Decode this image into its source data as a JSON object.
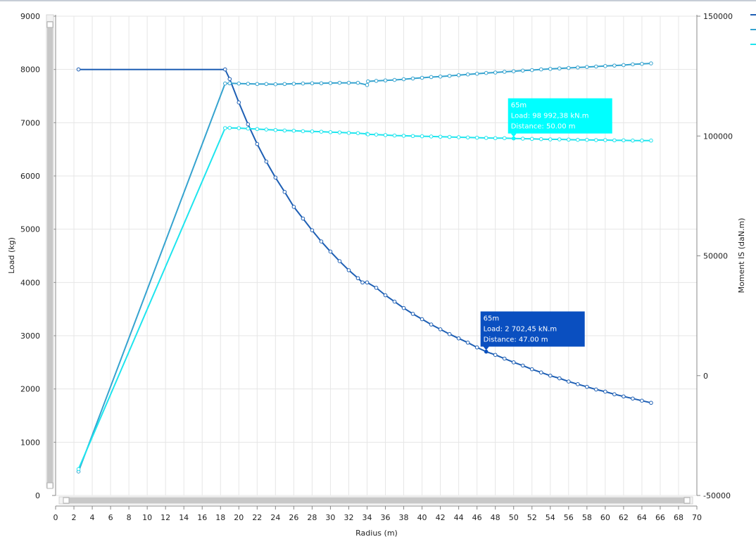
{
  "chart_data": {
    "type": "line",
    "xlabel": "Radius (m)",
    "ylabel": "Load (kg)",
    "y2label": "Moment IS (daN.m)",
    "xlim": [
      0,
      70
    ],
    "ylim": [
      0,
      9000
    ],
    "y2lim": [
      -50000,
      150000
    ],
    "xticks": [
      0,
      2,
      4,
      6,
      8,
      10,
      12,
      14,
      16,
      18,
      20,
      22,
      24,
      26,
      28,
      30,
      32,
      34,
      36,
      38,
      40,
      42,
      44,
      46,
      48,
      50,
      52,
      54,
      56,
      58,
      60,
      62,
      64,
      66,
      68,
      70
    ],
    "yticks": [
      0,
      1000,
      2000,
      3000,
      4000,
      5000,
      6000,
      7000,
      8000,
      9000
    ],
    "y2ticks": [
      "-50000",
      "0",
      "50000",
      "100000",
      "150000"
    ],
    "y2tick_values": [
      -50000,
      0,
      50000,
      100000,
      150000
    ],
    "grid": true,
    "legend": "top-right",
    "series": [
      {
        "axis": "left",
        "color": "#1e5fb4",
        "x": [
          2.5,
          18.5,
          19,
          20,
          21,
          22,
          23,
          24,
          25,
          26,
          27,
          28,
          29,
          30,
          31,
          32,
          33,
          33.5,
          34,
          35,
          36,
          37,
          38,
          39,
          40,
          41,
          42,
          43,
          44,
          45,
          46,
          47,
          48,
          49,
          50,
          51,
          52,
          53,
          54,
          55,
          56,
          57,
          58,
          59,
          60,
          61,
          62,
          63,
          64,
          65
        ],
        "y": [
          8000,
          8000,
          7820,
          7380,
          6970,
          6600,
          6270,
          5970,
          5700,
          5420,
          5200,
          4980,
          4770,
          4580,
          4400,
          4230,
          4080,
          4000,
          4000,
          3900,
          3760,
          3640,
          3520,
          3410,
          3310,
          3210,
          3120,
          3030,
          2950,
          2870,
          2780,
          2700,
          2640,
          2570,
          2500,
          2440,
          2370,
          2310,
          2250,
          2200,
          2140,
          2090,
          2040,
          1990,
          1950,
          1900,
          1860,
          1820,
          1780,
          1740
        ]
      },
      {
        "axis": "right",
        "color": "#35a3cf",
        "x": [
          2.5,
          18.5,
          19,
          20,
          21,
          22,
          23,
          24,
          25,
          26,
          27,
          28,
          29,
          30,
          31,
          32,
          33,
          34,
          34.1,
          35,
          36,
          37,
          38,
          39,
          40,
          41,
          42,
          43,
          44,
          45,
          46,
          47,
          48,
          49,
          50,
          51,
          52,
          53,
          54,
          55,
          56,
          57,
          58,
          59,
          60,
          61,
          62,
          63,
          64,
          65
        ],
        "y": [
          -40000,
          121900,
          122000,
          121900,
          121800,
          121700,
          121700,
          121600,
          121700,
          121800,
          121900,
          122000,
          122000,
          122100,
          122200,
          122200,
          122200,
          121300,
          122800,
          123000,
          123200,
          123400,
          123700,
          124000,
          124300,
          124600,
          124800,
          125100,
          125400,
          125700,
          126000,
          126300,
          126500,
          126800,
          127000,
          127300,
          127500,
          127800,
          128000,
          128200,
          128400,
          128600,
          128800,
          129000,
          129200,
          129400,
          129600,
          129900,
          130100,
          130300
        ]
      },
      {
        "axis": "right",
        "color": "#1ee5ee",
        "x": [
          2.5,
          18.5,
          19,
          20,
          21,
          22,
          23,
          24,
          25,
          26,
          27,
          28,
          29,
          30,
          31,
          32,
          33,
          34,
          34.1,
          35,
          36,
          37,
          38,
          39,
          40,
          41,
          42,
          43,
          44,
          45,
          46,
          47,
          48,
          49,
          50,
          51,
          52,
          53,
          54,
          55,
          56,
          57,
          58,
          59,
          60,
          61,
          62,
          63,
          64,
          65
        ],
        "y": [
          -39000,
          103300,
          103400,
          103300,
          103100,
          102900,
          102700,
          102500,
          102300,
          102200,
          102000,
          101900,
          101800,
          101600,
          101500,
          101300,
          101200,
          100900,
          100700,
          100600,
          100400,
          100200,
          100100,
          100000,
          99900,
          99800,
          99700,
          99600,
          99500,
          99400,
          99300,
          99200,
          99100,
          99100,
          98990,
          98900,
          98800,
          98700,
          98600,
          98600,
          98500,
          98400,
          98400,
          98300,
          98300,
          98200,
          98200,
          98100,
          98100,
          98100
        ]
      }
    ],
    "annotations": [
      {
        "lines": [
          "65m",
          "Load: 98 992,38 kN.m",
          "Distance: 50.00 m"
        ],
        "x": 50,
        "y": 98992.38,
        "axis": "right",
        "bg": "#00ffff",
        "text_color": "#ffffff"
      },
      {
        "lines": [
          "65m",
          "Load: 2 702,45 kN.m",
          "Distance: 47.00 m"
        ],
        "x": 47,
        "y": 2702.45,
        "axis": "left",
        "bg": "#0a4fc0",
        "text_color": "#ffffff"
      }
    ]
  },
  "legend": {
    "swatch_colors": [
      "#1e5fb4",
      "#35a3cf",
      "#1ee5ee"
    ]
  },
  "scrollbars": {
    "vertical_label": "vertical scrollbar",
    "horizontal_label": "horizontal scrollbar"
  }
}
